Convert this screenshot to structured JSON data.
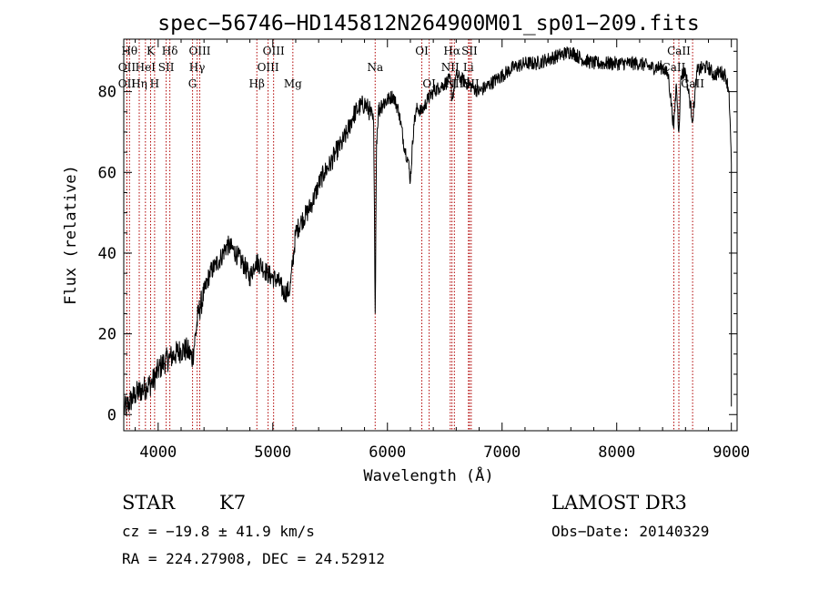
{
  "chart_data": {
    "type": "line",
    "title": "spec−56746−HD145812N264900M01_sp01−209.fits",
    "xlabel": "Wavelength (Å)",
    "ylabel": "Flux (relative)",
    "xlim": [
      3700,
      9050
    ],
    "ylim": [
      -4,
      93
    ],
    "xticks": [
      4000,
      5000,
      6000,
      7000,
      8000,
      9000
    ],
    "yticks": [
      0,
      20,
      40,
      60,
      80
    ],
    "grid": false,
    "series": [
      {
        "color": "#000000",
        "x": [
          3700,
          3750,
          3800,
          3850,
          3900,
          3950,
          4000,
          4050,
          4100,
          4150,
          4200,
          4250,
          4300,
          4350,
          4400,
          4450,
          4500,
          4550,
          4600,
          4650,
          4700,
          4750,
          4800,
          4850,
          4900,
          4950,
          5000,
          5050,
          5100,
          5150,
          5200,
          5250,
          5300,
          5350,
          5400,
          5450,
          5500,
          5550,
          5600,
          5650,
          5700,
          5750,
          5800,
          5850,
          5880,
          5893,
          5905,
          5920,
          5950,
          6000,
          6050,
          6100,
          6150,
          6180,
          6200,
          6230,
          6260,
          6300,
          6350,
          6400,
          6450,
          6500,
          6550,
          6563,
          6600,
          6650,
          6700,
          6750,
          6800,
          6850,
          6900,
          6950,
          7000,
          7100,
          7200,
          7300,
          7400,
          7500,
          7600,
          7700,
          7800,
          7900,
          8000,
          8100,
          8200,
          8300,
          8400,
          8450,
          8498,
          8520,
          8542,
          8560,
          8600,
          8662,
          8700,
          8750,
          8800,
          8850,
          8900,
          8950,
          8980,
          9000
        ],
        "y": [
          1,
          3,
          5,
          6,
          7,
          8,
          11,
          13,
          14,
          15,
          16,
          16,
          14,
          25,
          30,
          35,
          37,
          39,
          42,
          41,
          39,
          37,
          34,
          38,
          37,
          35,
          34,
          33,
          30,
          31,
          45,
          48,
          50,
          53,
          57,
          60,
          62,
          65,
          67,
          70,
          74,
          76,
          77,
          75,
          72,
          25,
          68,
          75,
          77,
          78,
          79,
          75,
          66,
          63,
          58,
          72,
          76,
          75,
          78,
          80,
          81,
          82,
          83,
          78,
          84,
          83,
          82,
          81,
          80,
          81,
          82,
          83,
          84,
          86,
          87,
          87,
          88,
          89,
          90,
          88,
          87,
          87,
          87,
          87,
          87,
          86,
          86,
          84,
          71,
          82,
          70,
          84,
          85,
          73,
          85,
          86,
          86,
          84,
          85,
          84,
          80,
          62
        ]
      }
    ],
    "line_markers": [
      {
        "wl": 3750,
        "label": "Hθ",
        "row": 0
      },
      {
        "wl": 3727,
        "label": "OII",
        "row": 1
      },
      {
        "wl": 3727,
        "label": "OII",
        "row": 2
      },
      {
        "wl": 3835,
        "label": "Hη",
        "row": 2
      },
      {
        "wl": 3889,
        "label": "HeI",
        "row": 1
      },
      {
        "wl": 3934,
        "label": "K",
        "row": 0
      },
      {
        "wl": 3969,
        "label": "H",
        "row": 2
      },
      {
        "wl": 4070,
        "label": "SII",
        "row": 1
      },
      {
        "wl": 4102,
        "label": "Hδ",
        "row": 0
      },
      {
        "wl": 4300,
        "label": "G",
        "row": 2
      },
      {
        "wl": 4340,
        "label": "Hγ",
        "row": 1
      },
      {
        "wl": 4363,
        "label": "OIII",
        "row": 0
      },
      {
        "wl": 4861,
        "label": "Hβ",
        "row": 2
      },
      {
        "wl": 4959,
        "label": "OIII",
        "row": 1
      },
      {
        "wl": 5007,
        "label": "OIII",
        "row": 0
      },
      {
        "wl": 5175,
        "label": "Mg",
        "row": 2
      },
      {
        "wl": 5893,
        "label": "Na",
        "row": 1
      },
      {
        "wl": 6300,
        "label": "OI",
        "row": 0
      },
      {
        "wl": 6364,
        "label": "OI",
        "row": 2
      },
      {
        "wl": 6548,
        "label": "NII",
        "row": 1
      },
      {
        "wl": 6563,
        "label": "Hα",
        "row": 0
      },
      {
        "wl": 6584,
        "label": "NII",
        "row": 2
      },
      {
        "wl": 6707,
        "label": "Li",
        "row": 1
      },
      {
        "wl": 6716,
        "label": "SII",
        "row": 0
      },
      {
        "wl": 6731,
        "label": "SII",
        "row": 2
      },
      {
        "wl": 8498,
        "label": "CaII",
        "row": 1
      },
      {
        "wl": 8542,
        "label": "CaII",
        "row": 0
      },
      {
        "wl": 8662,
        "label": "CaII",
        "row": 2
      }
    ]
  },
  "info": {
    "class": "STAR",
    "subclass": "K7",
    "survey": "LAMOST DR3",
    "cz": "cz = −19.8 ± 41.9 km/s",
    "obs_date": "Obs−Date: 20140329",
    "coords": "RA = 224.27908, DEC =  24.52912"
  }
}
